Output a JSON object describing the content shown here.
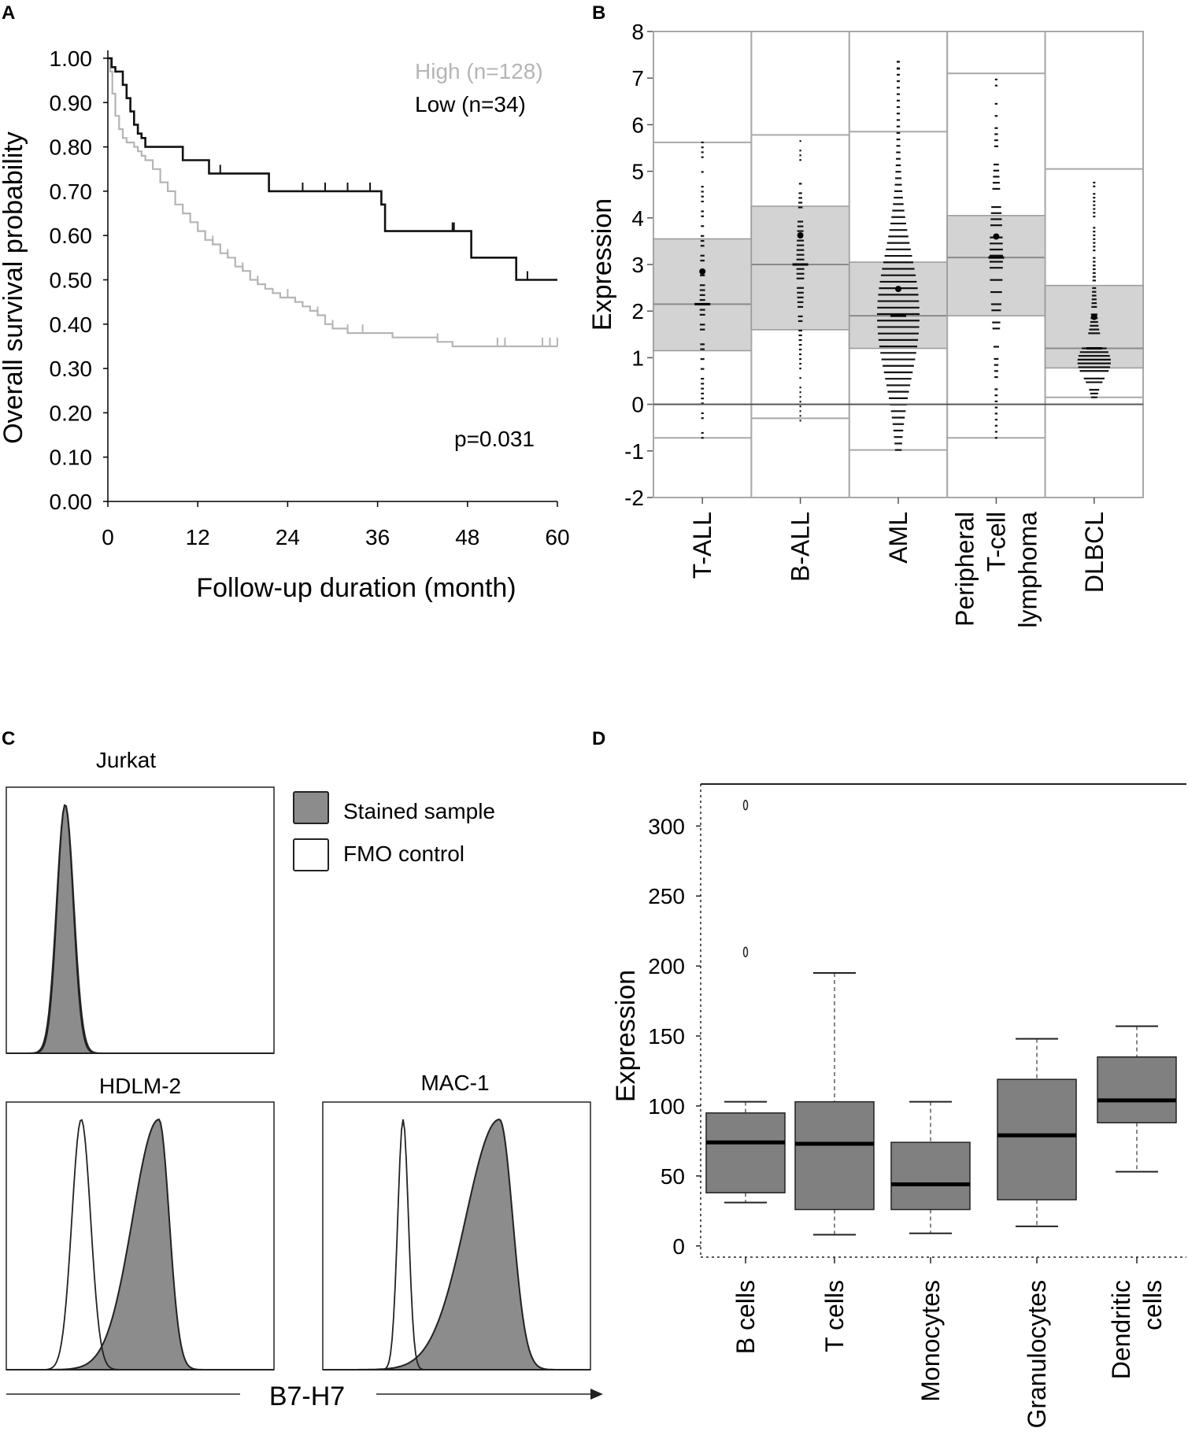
{
  "panels": {
    "a": "A",
    "b": "B",
    "c": "C",
    "d": "D"
  },
  "chart_data": [
    {
      "panel": "A",
      "type": "line",
      "title": "",
      "xlabel": "Follow-up duration (month)",
      "ylabel": "Overall survival probability",
      "xlim": [
        0,
        60
      ],
      "ylim": [
        0,
        1
      ],
      "x_ticks": [
        0,
        12,
        24,
        36,
        48,
        60
      ],
      "x_tick_labels": [
        "0",
        "12",
        "24",
        "36",
        "48",
        "60"
      ],
      "y_ticks": [
        0,
        0.1,
        0.2,
        0.3,
        0.4,
        0.5,
        0.6,
        0.7,
        0.8,
        0.9,
        1.0
      ],
      "y_tick_labels": [
        "0.00",
        "0.10",
        "0.20",
        "0.30",
        "0.40",
        "0.50",
        "0.60",
        "0.70",
        "0.80",
        "0.90",
        "1.00"
      ],
      "annotation": "p=0.031",
      "series": [
        {
          "name": "High (n=128)",
          "color": "#b5b5b5",
          "x": [
            0,
            0.3,
            0.6,
            1.0,
            1.5,
            2.0,
            2.5,
            3.0,
            3.5,
            4.0,
            4.5,
            5.0,
            6.0,
            7.0,
            8.0,
            9.0,
            10.0,
            11.0,
            12.0,
            13.0,
            14.0,
            15.0,
            16.0,
            17.0,
            18.0,
            19.0,
            20.0,
            21.0,
            22.0,
            23.0,
            24.0,
            25.0,
            26.0,
            27.0,
            28.0,
            29.0,
            30.0,
            32.0,
            34.0,
            36.0,
            38.0,
            40.0,
            42.0,
            44.0,
            46.0,
            48.0,
            50.0,
            55.0,
            60.0
          ],
          "values": [
            1.0,
            0.97,
            0.92,
            0.87,
            0.84,
            0.82,
            0.81,
            0.81,
            0.8,
            0.79,
            0.78,
            0.77,
            0.75,
            0.72,
            0.7,
            0.67,
            0.65,
            0.63,
            0.61,
            0.59,
            0.58,
            0.56,
            0.55,
            0.53,
            0.52,
            0.5,
            0.49,
            0.48,
            0.47,
            0.46,
            0.46,
            0.45,
            0.44,
            0.43,
            0.42,
            0.4,
            0.39,
            0.38,
            0.38,
            0.38,
            0.37,
            0.37,
            0.37,
            0.36,
            0.35,
            0.35,
            0.35,
            0.35,
            0.35
          ],
          "censor_x": [
            13,
            14,
            16,
            18,
            20,
            24,
            28,
            30,
            32,
            34,
            44,
            52,
            53,
            58,
            59,
            60
          ]
        },
        {
          "name": "Low (n=34)",
          "color": "#111111",
          "x": [
            0,
            0.5,
            1.0,
            2.0,
            2.5,
            3.0,
            3.5,
            4.0,
            4.5,
            5.0,
            10.0,
            13.5,
            21.5,
            36.0,
            36.5,
            37.0,
            48.5,
            54.5,
            60.0
          ],
          "values": [
            1.0,
            0.98,
            0.97,
            0.94,
            0.91,
            0.88,
            0.85,
            0.83,
            0.82,
            0.8,
            0.77,
            0.74,
            0.7,
            0.7,
            0.67,
            0.61,
            0.55,
            0.5,
            0.5
          ],
          "censor_x": [
            4,
            15,
            26,
            29,
            32,
            35,
            46,
            46.2,
            56
          ]
        }
      ]
    },
    {
      "panel": "B",
      "type": "scatter",
      "subtype": "box-with-beeswarm",
      "ylabel": "Expression",
      "ylim": [
        -2,
        8
      ],
      "y_ticks": [
        -2,
        -1,
        0,
        1,
        2,
        3,
        4,
        5,
        6,
        7,
        8
      ],
      "y_tick_labels": [
        "-2",
        "-1",
        "0",
        "1",
        "2",
        "3",
        "4",
        "5",
        "6",
        "7",
        "8"
      ],
      "categories": [
        "T-ALL",
        "B-ALL",
        "AML",
        "Peripheral T-cell lymphoma",
        "DLBCL"
      ],
      "category_lines": [
        [
          "T-ALL"
        ],
        [
          "B-ALL"
        ],
        [
          "AML"
        ],
        [
          "Peripheral",
          "T-cell",
          "lymphoma"
        ],
        [
          "DLBCL"
        ]
      ],
      "boxes": [
        {
          "q1": 1.15,
          "median": 2.15,
          "q3": 3.55,
          "whisker_low": -0.72,
          "whisker_high": 5.62,
          "points_min": -0.72,
          "points_max": 5.62,
          "n_points": 40,
          "density": "uniform"
        },
        {
          "q1": 1.6,
          "median": 3.0,
          "q3": 4.25,
          "whisker_low": -0.3,
          "whisker_high": 5.78,
          "points_min": -0.35,
          "points_max": 5.75,
          "n_points": 70,
          "density": "high"
        },
        {
          "q1": 1.2,
          "median": 1.9,
          "q3": 3.05,
          "whisker_low": -0.98,
          "whisker_high": 5.85,
          "points_min": -0.98,
          "points_max": 7.35,
          "n_points": 500,
          "density": "dense"
        },
        {
          "q1": 1.9,
          "median": 3.15,
          "q3": 4.05,
          "whisker_low": -0.72,
          "whisker_high": 7.1,
          "points_min": -0.72,
          "points_max": 7.1,
          "n_points": 150,
          "density": "mid"
        },
        {
          "q1": 0.78,
          "median": 1.2,
          "q3": 2.55,
          "whisker_low": 0.15,
          "whisker_high": 5.05,
          "points_min": 0.15,
          "points_max": 5.0,
          "n_points": 180,
          "density": "low"
        }
      ]
    },
    {
      "panel": "C",
      "type": "area",
      "subtype": "flow-cytometry-histograms",
      "xlabel": "B7-H7",
      "legend": [
        {
          "label": "Stained sample",
          "color": "#8c8c8c"
        },
        {
          "label": "FMO control",
          "color": "#ffffff"
        }
      ],
      "histograms": [
        {
          "title": "Jurkat",
          "fmo_peak": 0.22,
          "fmo_width": 0.03,
          "stained_peak": 0.22,
          "stained_width": 0.032
        },
        {
          "title": "HDLM-2",
          "fmo_peak": 0.28,
          "fmo_width": 0.035,
          "stained_peak": 0.57,
          "stained_width": 0.07
        },
        {
          "title": "MAC-1",
          "fmo_peak": 0.3,
          "fmo_width": 0.02,
          "stained_peak": 0.66,
          "stained_width": 0.09
        }
      ]
    },
    {
      "panel": "D",
      "type": "bar",
      "subtype": "boxplot",
      "ylabel": "Expression",
      "ylim": [
        -8,
        330
      ],
      "y_ticks": [
        0,
        50,
        100,
        150,
        200,
        250,
        300
      ],
      "y_tick_labels": [
        "0",
        "50",
        "100",
        "150",
        "200",
        "250",
        "300"
      ],
      "categories": [
        "B cells",
        "T cells",
        "Monocytes",
        "Granulocytes",
        "Dendritic cells"
      ],
      "category_lines": [
        [
          "B cells"
        ],
        [
          "T cells"
        ],
        [
          "Monocytes"
        ],
        [
          "Granulocytes"
        ],
        [
          "Dendritic",
          "cells"
        ]
      ],
      "box_color": "#808080",
      "boxes": [
        {
          "min": 31,
          "q1": 38,
          "median": 74,
          "q3": 95,
          "max": 103,
          "outliers": [
            210,
            315
          ]
        },
        {
          "min": 8,
          "q1": 26,
          "median": 73,
          "q3": 103,
          "max": 195,
          "outliers": []
        },
        {
          "min": 9,
          "q1": 26,
          "median": 44,
          "q3": 74,
          "max": 103,
          "outliers": []
        },
        {
          "min": 14,
          "q1": 33,
          "median": 79,
          "q3": 119,
          "max": 148,
          "outliers": []
        },
        {
          "min": 53,
          "q1": 88,
          "median": 104,
          "q3": 135,
          "max": 157,
          "outliers": []
        }
      ]
    }
  ]
}
